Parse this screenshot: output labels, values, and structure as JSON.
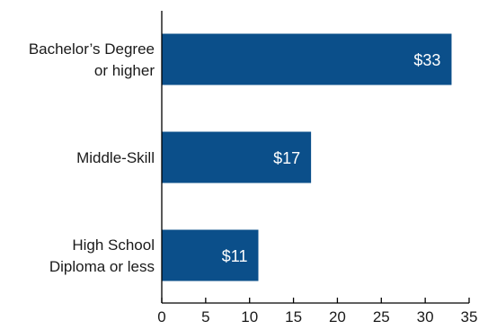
{
  "chart_data": {
    "type": "bar",
    "orientation": "horizontal",
    "title": "",
    "xlabel": "",
    "ylabel": "",
    "categories": [
      "Bachelor’s Degree or higher",
      "Middle-Skill",
      "High School Diploma or less"
    ],
    "category_lines": [
      [
        "Bachelor’s Degree",
        "or higher"
      ],
      [
        "Middle-Skill"
      ],
      [
        "High School",
        "Diploma or less"
      ]
    ],
    "values": [
      33,
      17,
      11
    ],
    "data_labels": [
      "$33",
      "$17",
      "$11"
    ],
    "xlim": [
      0,
      35
    ],
    "x_ticks": [
      0,
      5,
      10,
      15,
      20,
      25,
      30,
      35
    ],
    "x_tick_labels": [
      "0",
      "5",
      "10",
      "15",
      "20",
      "25",
      "30",
      "35"
    ],
    "grid": false,
    "legend": "none",
    "colors": {
      "bar": "#0b4f8a",
      "axis": "#000000",
      "label_text": "#1a1a1a",
      "data_label_text": "#ffffff"
    }
  }
}
